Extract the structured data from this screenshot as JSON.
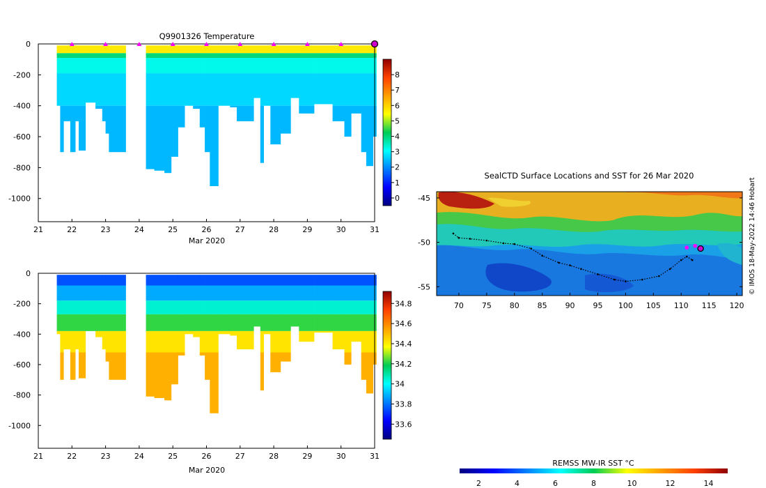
{
  "chart_data": [
    {
      "type": "heatmap",
      "title": "Q9901326  Temperature",
      "xlabel": "Mar 2020",
      "ylabel": "",
      "xlim": [
        21,
        31
      ],
      "ylim": [
        -1150,
        0
      ],
      "x_ticks": [
        "21",
        "22",
        "23",
        "24",
        "25",
        "26",
        "27",
        "28",
        "29",
        "30",
        "31"
      ],
      "y_ticks": [
        0,
        -200,
        -400,
        -600,
        -800,
        -1000
      ],
      "colorbar": {
        "ticks": [
          0,
          1,
          2,
          3,
          4,
          5,
          6,
          7,
          8
        ],
        "range": [
          -0.5,
          9
        ]
      },
      "profile_markers_x": [
        22,
        23,
        24,
        25,
        26,
        27,
        28,
        29,
        30
      ],
      "current_position_x": 31,
      "bands": [
        {
          "value": 5.7,
          "top": -10,
          "bottom": -60
        },
        {
          "value": 4.0,
          "top": -60,
          "bottom": -90
        },
        {
          "value": 3.2,
          "top": -90,
          "bottom": -190
        },
        {
          "value": 2.7,
          "top": -190,
          "bottom": -400
        },
        {
          "value": 2.4,
          "top": -400,
          "bottom": -1000
        }
      ],
      "profiles": [
        {
          "start": 21.55,
          "end": 21.65,
          "depth": -400
        },
        {
          "start": 21.65,
          "end": 21.75,
          "depth": -700
        },
        {
          "start": 21.75,
          "end": 21.95,
          "depth": -500
        },
        {
          "start": 21.95,
          "end": 22.1,
          "depth": -700
        },
        {
          "start": 22.1,
          "end": 22.2,
          "depth": -500
        },
        {
          "start": 22.2,
          "end": 22.4,
          "depth": -690
        },
        {
          "start": 22.4,
          "end": 22.7,
          "depth": -380
        },
        {
          "start": 22.7,
          "end": 22.9,
          "depth": -420
        },
        {
          "start": 22.9,
          "end": 23.0,
          "depth": -500
        },
        {
          "start": 23.0,
          "end": 23.1,
          "depth": -580
        },
        {
          "start": 23.1,
          "end": 23.6,
          "depth": -700
        },
        {
          "start": 24.2,
          "end": 24.45,
          "depth": -810
        },
        {
          "start": 24.45,
          "end": 24.75,
          "depth": -820
        },
        {
          "start": 24.75,
          "end": 24.95,
          "depth": -835
        },
        {
          "start": 24.95,
          "end": 25.15,
          "depth": -730
        },
        {
          "start": 25.15,
          "end": 25.35,
          "depth": -540
        },
        {
          "start": 25.35,
          "end": 25.6,
          "depth": -400
        },
        {
          "start": 25.6,
          "end": 25.8,
          "depth": -420
        },
        {
          "start": 25.8,
          "end": 25.95,
          "depth": -540
        },
        {
          "start": 25.95,
          "end": 26.1,
          "depth": -700
        },
        {
          "start": 26.1,
          "end": 26.35,
          "depth": -920
        },
        {
          "start": 26.35,
          "end": 26.7,
          "depth": -400
        },
        {
          "start": 26.7,
          "end": 26.9,
          "depth": -410
        },
        {
          "start": 26.9,
          "end": 27.4,
          "depth": -500
        },
        {
          "start": 27.4,
          "end": 27.6,
          "depth": -350
        },
        {
          "start": 27.6,
          "end": 27.7,
          "depth": -770
        },
        {
          "start": 27.7,
          "end": 27.9,
          "depth": -400
        },
        {
          "start": 27.9,
          "end": 28.2,
          "depth": -650
        },
        {
          "start": 28.2,
          "end": 28.5,
          "depth": -580
        },
        {
          "start": 28.5,
          "end": 28.75,
          "depth": -350
        },
        {
          "start": 28.75,
          "end": 29.2,
          "depth": -450
        },
        {
          "start": 29.2,
          "end": 29.75,
          "depth": -390
        },
        {
          "start": 29.75,
          "end": 30.1,
          "depth": -500
        },
        {
          "start": 30.1,
          "end": 30.3,
          "depth": -600
        },
        {
          "start": 30.3,
          "end": 30.6,
          "depth": -450
        },
        {
          "start": 30.6,
          "end": 30.75,
          "depth": -700
        },
        {
          "start": 30.75,
          "end": 30.95,
          "depth": -790
        },
        {
          "start": 30.95,
          "end": 31.05,
          "depth": -600
        }
      ]
    },
    {
      "type": "heatmap",
      "title": "",
      "xlabel": "Mar 2020",
      "ylabel": "",
      "xlim": [
        21,
        31
      ],
      "ylim": [
        -1150,
        0
      ],
      "x_ticks": [
        "21",
        "22",
        "23",
        "24",
        "25",
        "26",
        "27",
        "28",
        "29",
        "30",
        "31"
      ],
      "y_ticks": [
        0,
        -200,
        -400,
        -600,
        -800,
        -1000
      ],
      "colorbar": {
        "ticks": [
          "33.6",
          "33.8",
          "34",
          "34.2",
          "34.4",
          "34.6",
          "34.8"
        ],
        "range": [
          33.45,
          34.92
        ]
      },
      "bands": [
        {
          "value": 33.75,
          "top": -10,
          "bottom": -80
        },
        {
          "value": 33.88,
          "top": -80,
          "bottom": -180
        },
        {
          "value": 34.05,
          "top": -180,
          "bottom": -270
        },
        {
          "value": 34.22,
          "top": -270,
          "bottom": -380
        },
        {
          "value": 34.42,
          "top": -380,
          "bottom": -520
        },
        {
          "value": 34.52,
          "top": -520,
          "bottom": -1000
        }
      ]
    },
    {
      "type": "heatmap",
      "title": "SealCTD Surface Locations and SST for 26 Mar 2020",
      "xlabel": "",
      "ylabel": "",
      "xlim": [
        66,
        121
      ],
      "ylim": [
        -56,
        -44.3
      ],
      "x_ticks": [
        70,
        75,
        80,
        85,
        90,
        95,
        100,
        105,
        110,
        115,
        120
      ],
      "y_ticks": [
        -45,
        -50,
        -55
      ],
      "track": [
        [
          69,
          -49
        ],
        [
          70,
          -49.5
        ],
        [
          72,
          -49.6
        ],
        [
          75,
          -49.8
        ],
        [
          78,
          -50.1
        ],
        [
          80,
          -50.2
        ],
        [
          83,
          -50.7
        ],
        [
          85,
          -51.5
        ],
        [
          88,
          -52.3
        ],
        [
          90,
          -52.6
        ],
        [
          92,
          -53
        ],
        [
          95,
          -53.6
        ],
        [
          98,
          -54.2
        ],
        [
          100,
          -54.4
        ],
        [
          103,
          -54.2
        ],
        [
          106,
          -53.8
        ],
        [
          108,
          -53
        ],
        [
          110,
          -52
        ],
        [
          111,
          -51.6
        ],
        [
          112,
          -52
        ]
      ],
      "recent_positions": [
        [
          111,
          -50.6
        ],
        [
          112.5,
          -50.4
        ]
      ],
      "current_position": [
        113.5,
        -50.7
      ],
      "colorbar": {
        "label": "REMSS MW-IR SST °C",
        "ticks": [
          2,
          4,
          6,
          8,
          10,
          12,
          14
        ],
        "range": [
          1,
          15
        ]
      }
    }
  ],
  "credit": "© IMOS 18-May-2022 14:46 Hobart"
}
